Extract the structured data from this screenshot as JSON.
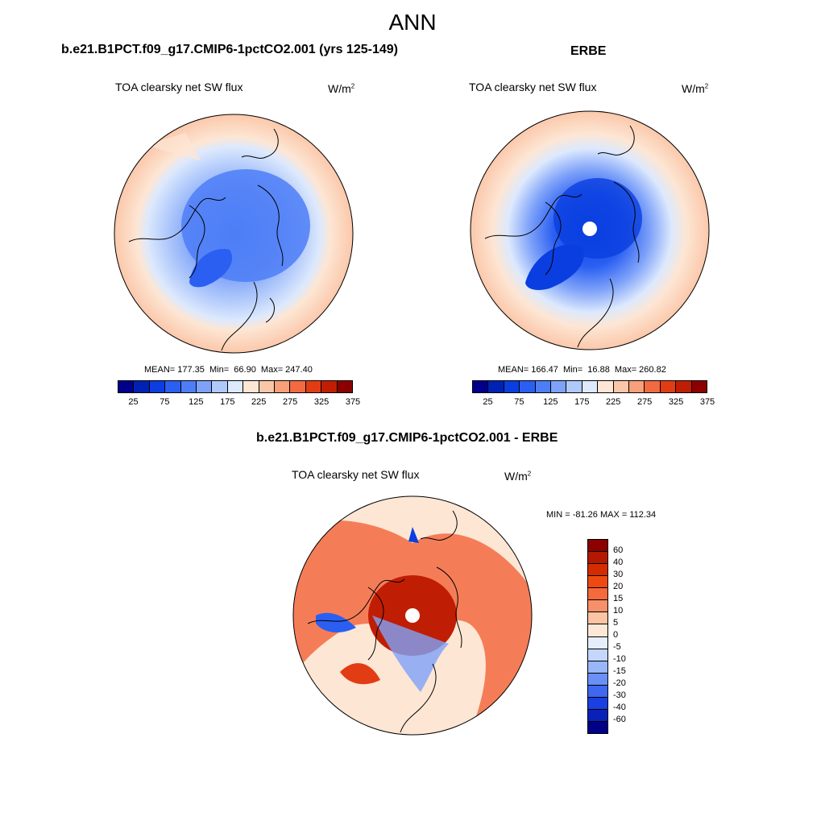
{
  "title": "ANN",
  "panels": {
    "model": {
      "title": "b.e21.B1PCT.f09_g17.CMIP6-1pctCO2.001 (yrs 125-149)",
      "variable": "TOA clearsky net SW flux",
      "unit_base": "W/m",
      "unit_exp": "2",
      "stats": "MEAN= 177.35  Min=  66.90  Max= 247.40"
    },
    "obs": {
      "title": "ERBE",
      "variable": "TOA clearsky net SW flux",
      "unit_base": "W/m",
      "unit_exp": "2",
      "stats": "MEAN= 166.47  Min=  16.88  Max= 260.82"
    },
    "diff": {
      "title": "b.e21.B1PCT.f09_g17.CMIP6-1pctCO2.001 - ERBE",
      "variable": "TOA clearsky net SW flux",
      "unit_base": "W/m",
      "unit_exp": "2",
      "stats": "MIN = -81.26 MAX = 112.34"
    }
  },
  "colorbar_abs": {
    "colors": [
      "#00008c",
      "#0022b4",
      "#0a3ee0",
      "#2a5ff2",
      "#4d7ef7",
      "#7ea2f9",
      "#b0c9fb",
      "#dde9fd",
      "#fde6d4",
      "#fbc6a8",
      "#f7a07a",
      "#f26a42",
      "#e23c14",
      "#c01e04",
      "#8c0000"
    ],
    "tick_labels": [
      "25",
      "75",
      "125",
      "175",
      "225",
      "275",
      "325",
      "375"
    ]
  },
  "colorbar_diff": {
    "colors": [
      "#8c0000",
      "#b31800",
      "#d42c00",
      "#ee4a10",
      "#f46a3a",
      "#f7906a",
      "#fbc4a2",
      "#fde8d8",
      "#e6eefc",
      "#c4d6fb",
      "#99b6f8",
      "#6b90f5",
      "#3f68ef",
      "#1a40e2",
      "#0822b8",
      "#000088"
    ],
    "tick_labels": [
      "60",
      "40",
      "30",
      "20",
      "15",
      "10",
      "5",
      "0",
      "-5",
      "-10",
      "-15",
      "-20",
      "-30",
      "-40",
      "-60"
    ]
  }
}
